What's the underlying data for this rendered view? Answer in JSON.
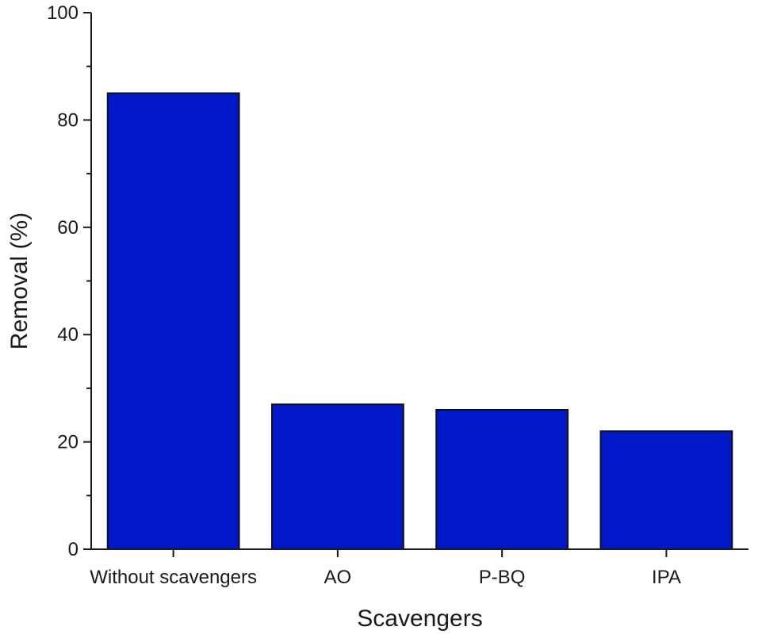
{
  "chart_data": {
    "type": "bar",
    "categories": [
      "Without scavengers",
      "AO",
      "P-BQ",
      "IPA"
    ],
    "values": [
      85,
      27,
      26,
      22
    ],
    "xlabel": "Scavengers",
    "ylabel": "Removal (%)",
    "ylim": [
      0,
      100
    ],
    "yticks": [
      0,
      20,
      40,
      60,
      80,
      100
    ],
    "grid": false,
    "bar_color": "#0018c8"
  }
}
